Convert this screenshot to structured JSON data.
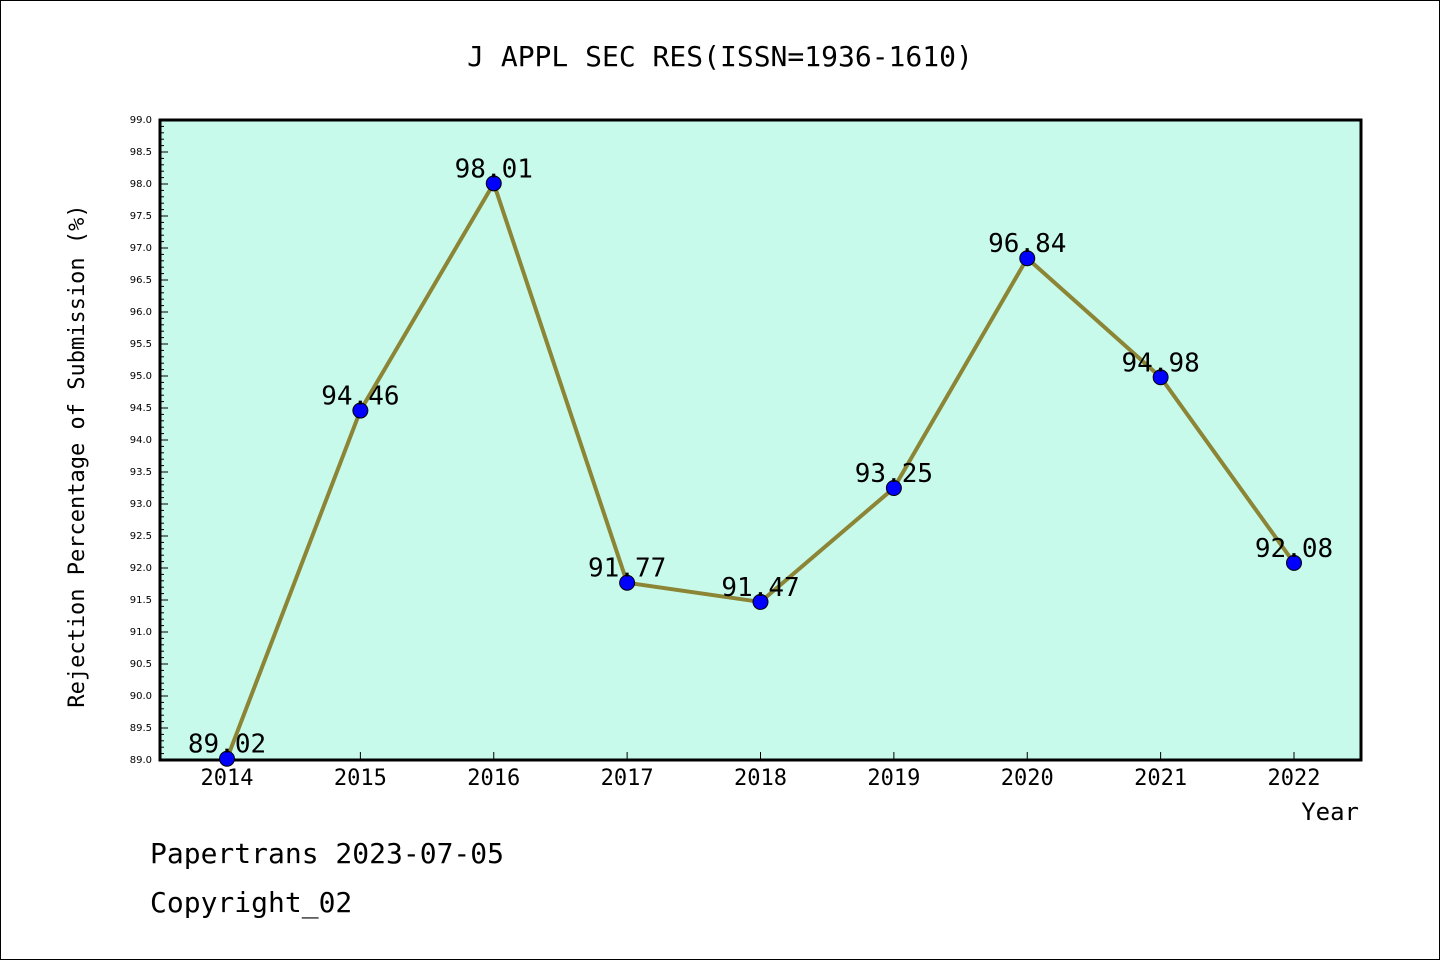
{
  "chart_data": {
    "type": "line",
    "title": "J APPL SEC RES(ISSN=1936-1610)",
    "xlabel": "Year",
    "ylabel": "Rejection Percentage of Submission (%)",
    "categories": [
      "2014",
      "2015",
      "2016",
      "2017",
      "2018",
      "2019",
      "2020",
      "2021",
      "2022"
    ],
    "series": [
      {
        "values": [
          89.02,
          94.46,
          98.01,
          91.77,
          91.47,
          93.25,
          96.84,
          94.98,
          92.08
        ]
      }
    ],
    "data_labels": [
      "89.02",
      "94.46",
      "98.01",
      "91.77",
      "91.47",
      "93.25",
      "96.84",
      "94.98",
      "92.08"
    ],
    "ylim": [
      89.0,
      99.0
    ],
    "ytick_step": 0.5,
    "grid": false,
    "legend": "none",
    "colors": {
      "plot_background": "#c8faeb",
      "line": "#8b8535",
      "marker": "#0000ff"
    }
  },
  "footer": {
    "line1": "Papertrans 2023-07-05",
    "line2": "Copyright_02"
  }
}
